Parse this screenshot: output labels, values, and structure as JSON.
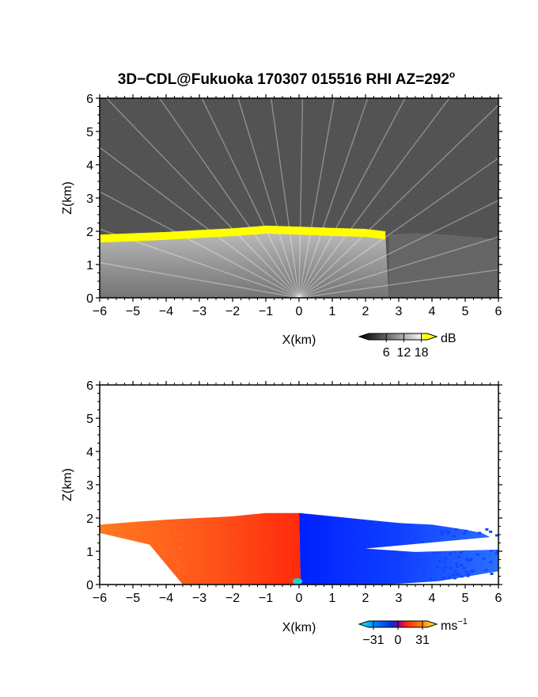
{
  "figure": {
    "title": "3D−CDL@Fukuoka 170307 015516 RHI AZ=292",
    "title_superscript": "o"
  },
  "colors": {
    "snr_yellow": "#ffff00",
    "velocity_negative": "#1040ff",
    "velocity_positive": "#ff4010",
    "background": "#ffffff"
  },
  "chart_data": [
    {
      "type": "heatmap",
      "name": "snr",
      "xlabel": "X(km)",
      "ylabel": "Z(km)",
      "xlim": [
        -6,
        6
      ],
      "ylim": [
        0,
        6
      ],
      "x_ticks": [
        "−6",
        "−5",
        "−4",
        "−3",
        "−2",
        "−1",
        "0",
        "1",
        "2",
        "3",
        "4",
        "5",
        "6"
      ],
      "y_ticks": [
        "0",
        "1",
        "2",
        "3",
        "4",
        "5",
        "6"
      ],
      "colorbar": {
        "unit": "dB",
        "ticks": [
          "6",
          "12",
          "18"
        ],
        "values": [
          6,
          12,
          18
        ]
      },
      "cloud_base": {
        "x": [
          -6.0,
          -5.0,
          -4.0,
          -3.0,
          -2.0,
          -1.0,
          0.0,
          1.0,
          2.0,
          2.6
        ],
        "z": [
          1.78,
          1.82,
          1.86,
          1.92,
          1.97,
          2.05,
          2.02,
          1.98,
          1.95,
          1.88
        ]
      },
      "echo_extent_km": [
        -6,
        2.7
      ],
      "aerosol_top": {
        "x": [
          2.7,
          3.5,
          4.5,
          5.5,
          6.0
        ],
        "z": [
          1.9,
          1.95,
          1.9,
          1.8,
          1.75
        ]
      }
    },
    {
      "type": "heatmap",
      "name": "doppler-velocity",
      "xlabel": "X(km)",
      "ylabel": "Z(km)",
      "xlim": [
        -6,
        6
      ],
      "ylim": [
        0,
        6
      ],
      "x_ticks": [
        "−6",
        "−5",
        "−4",
        "−3",
        "−2",
        "−1",
        "0",
        "1",
        "2",
        "3",
        "4",
        "5",
        "6"
      ],
      "y_ticks": [
        "0",
        "1",
        "2",
        "3",
        "4",
        "5",
        "6"
      ],
      "colorbar": {
        "unit": "ms",
        "unit_exp": "−1",
        "ticks": [
          "−31",
          "0",
          "31"
        ],
        "values": [
          -31,
          0,
          31
        ]
      },
      "top_profile": {
        "x": [
          -6.0,
          -5.0,
          -4.0,
          -3.0,
          -2.0,
          -1.0,
          0.0,
          1.0,
          2.0,
          3.0,
          4.0,
          5.0,
          5.5
        ],
        "z": [
          1.8,
          1.88,
          1.95,
          2.0,
          2.05,
          2.15,
          2.15,
          2.05,
          1.95,
          1.85,
          1.8,
          1.65,
          1.55
        ]
      },
      "left_extent_km": -6,
      "right_extent_km": 6
    }
  ]
}
